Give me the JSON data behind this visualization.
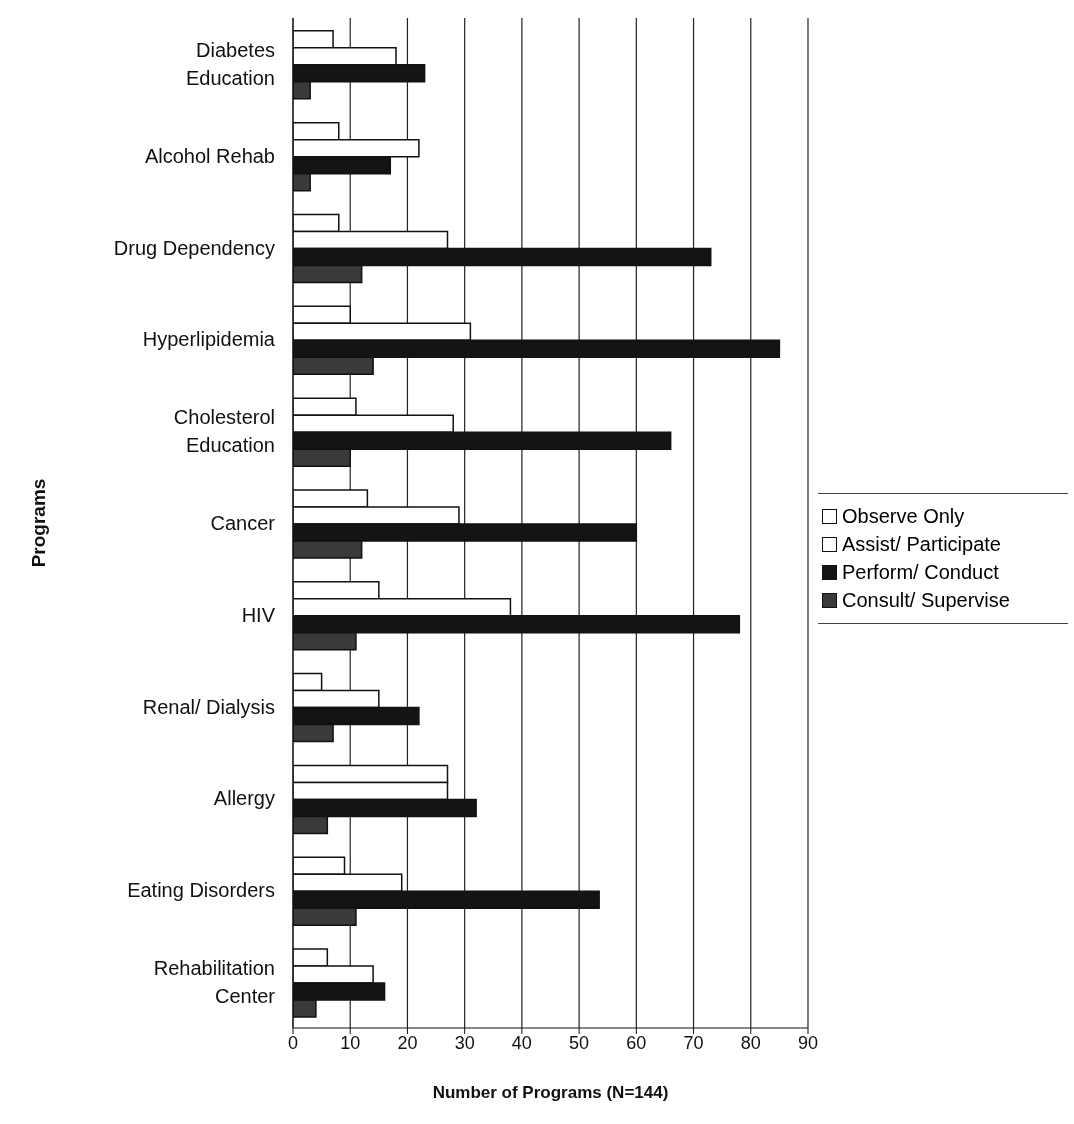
{
  "chart_data": {
    "type": "bar",
    "orientation": "horizontal",
    "xlabel": "Number of Programs (N=144)",
    "ylabel": "Programs",
    "categories": [
      "Diabetes Education",
      "Alcohol Rehab",
      "Drug Dependency",
      "Hyperlipidemia",
      "Cholesterol Education",
      "Cancer",
      "HIV",
      "Renal/ Dialysis",
      "Allergy",
      "Eating Disorders",
      "Rehabilitation Center"
    ],
    "series": [
      {
        "name": "Observe Only",
        "color": "#ffffff",
        "values": [
          7,
          8,
          8,
          10,
          11,
          13,
          15,
          5,
          27,
          9,
          6
        ]
      },
      {
        "name": "Assist/ Participate",
        "color": "#ffffff",
        "values": [
          18,
          22,
          27,
          31,
          28,
          29,
          38,
          15,
          27,
          19,
          14
        ]
      },
      {
        "name": "Perform/ Conduct",
        "color": "#141414",
        "values": [
          23,
          17,
          73,
          85,
          66,
          60,
          78,
          22,
          32,
          53.5,
          16
        ]
      },
      {
        "name": "Consult/ Supervise",
        "color": "#3a3a3a",
        "values": [
          3,
          3,
          12,
          14,
          10,
          12,
          11,
          7,
          6,
          11,
          4
        ]
      }
    ],
    "xlim": [
      0,
      90
    ],
    "xticks": [
      0,
      10,
      20,
      30,
      40,
      50,
      60,
      70,
      80,
      90
    ],
    "grid": "x",
    "legend": "right"
  }
}
